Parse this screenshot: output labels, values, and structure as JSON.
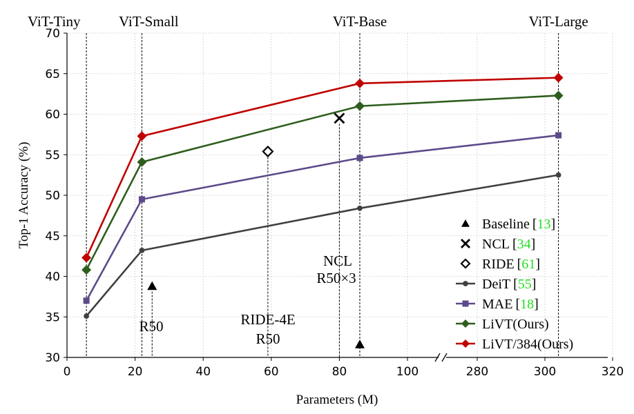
{
  "chart_data": {
    "type": "line",
    "xlabel": "Parameters (M)",
    "ylabel": "Top-1 Accuracy (%)",
    "ylim": [
      30,
      70
    ],
    "x_ticks": [
      "0",
      "20",
      "40",
      "60",
      "80",
      "100",
      "280",
      "300",
      "320"
    ],
    "y_ticks": [
      "30",
      "35",
      "40",
      "45",
      "50",
      "55",
      "60",
      "65",
      "70"
    ],
    "grid": true,
    "axis_break": "between 100 and 280",
    "top_labels": [
      {
        "text": "ViT-Tiny",
        "x": 5.7
      },
      {
        "text": "ViT-Small",
        "x": 22
      },
      {
        "text": "ViT-Base",
        "x": 86
      },
      {
        "text": "ViT-Large",
        "x": 304
      }
    ],
    "series": [
      {
        "name": "DeiT",
        "color": "#404040",
        "marker": "circle",
        "x": [
          5.7,
          22,
          86,
          304
        ],
        "values": [
          35.1,
          43.2,
          48.4,
          52.5
        ]
      },
      {
        "name": "MAE",
        "color": "#5c4a8a",
        "marker": "square",
        "x": [
          5.7,
          22,
          86,
          304
        ],
        "values": [
          37.0,
          49.5,
          54.6,
          57.4
        ]
      },
      {
        "name": "LiVT(Ours)",
        "color": "#2e5e1e",
        "marker": "diamond",
        "x": [
          5.7,
          22,
          86,
          304
        ],
        "values": [
          40.8,
          54.1,
          61.0,
          62.3
        ]
      },
      {
        "name": "LiVT/384(Ours)",
        "color": "#c00000",
        "marker": "diamond",
        "x": [
          5.7,
          22,
          86,
          304
        ],
        "values": [
          42.3,
          57.3,
          63.8,
          64.5
        ]
      }
    ],
    "points": [
      {
        "name": "Baseline",
        "marker": "triangle",
        "x": 25,
        "y": 38.8,
        "label": "R50"
      },
      {
        "name": "Baseline",
        "marker": "triangle",
        "x": 86,
        "y": 31.6,
        "label": ""
      },
      {
        "name": "NCL",
        "marker": "x",
        "x": 80,
        "y": 59.5,
        "label": "NCL R50×3"
      },
      {
        "name": "RIDE",
        "marker": "open-diamond",
        "x": 59,
        "y": 55.4,
        "label": "RIDE-4E R50"
      }
    ],
    "annotations": {
      "r50": "R50",
      "ride_line1": "RIDE-4E",
      "ride_line2": "R50",
      "ncl_line1": "NCL",
      "ncl_line2": "R50×3"
    },
    "legend": {
      "position": "lower-right",
      "entries": [
        {
          "name": "Baseline",
          "ref": "13",
          "marker": "triangle",
          "color": "#000000"
        },
        {
          "name": "NCL",
          "ref": "34",
          "marker": "x",
          "color": "#000000"
        },
        {
          "name": "RIDE",
          "ref": "61",
          "marker": "open-diamond",
          "color": "#000000"
        },
        {
          "name": "DeiT",
          "ref": "55",
          "marker": "circle",
          "color": "#404040"
        },
        {
          "name": "MAE",
          "ref": "18",
          "marker": "square",
          "color": "#5c4a8a"
        },
        {
          "name": "LiVT(Ours)",
          "ref": "",
          "marker": "diamond",
          "color": "#2e5e1e"
        },
        {
          "name": "LiVT/384(Ours)",
          "ref": "",
          "marker": "diamond",
          "color": "#c00000"
        }
      ]
    },
    "ref_color": "#22dd22"
  }
}
